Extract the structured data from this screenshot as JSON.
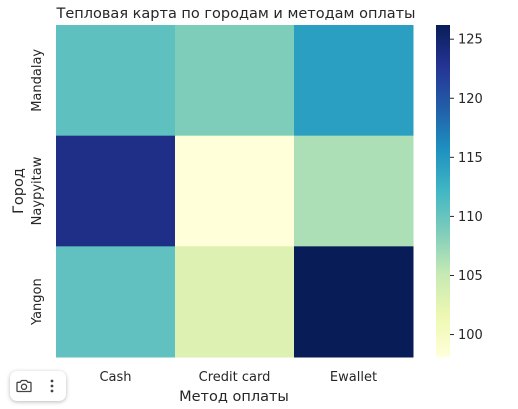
{
  "chart_data": {
    "type": "heatmap",
    "title": "Тепловая карта по городам и методам оплаты",
    "xlabel": "Метод оплаты",
    "ylabel": "Город",
    "x_categories": [
      "Cash",
      "Credit card",
      "Ewallet"
    ],
    "y_categories": [
      "Mandalay",
      "Naypyitaw",
      "Yangon"
    ],
    "values": [
      [
        110.5,
        108.7,
        114.3
      ],
      [
        123.4,
        98.1,
        106.4
      ],
      [
        110.4,
        103.2,
        126.2
      ]
    ],
    "colorbar": {
      "colormap": "YlGnBu",
      "range": [
        98.1,
        126.2
      ],
      "ticks": [
        100,
        105,
        110,
        115,
        120,
        125
      ]
    }
  },
  "toolbar": {
    "camera_icon": "camera-icon",
    "more_icon": "more-vertical-icon"
  }
}
